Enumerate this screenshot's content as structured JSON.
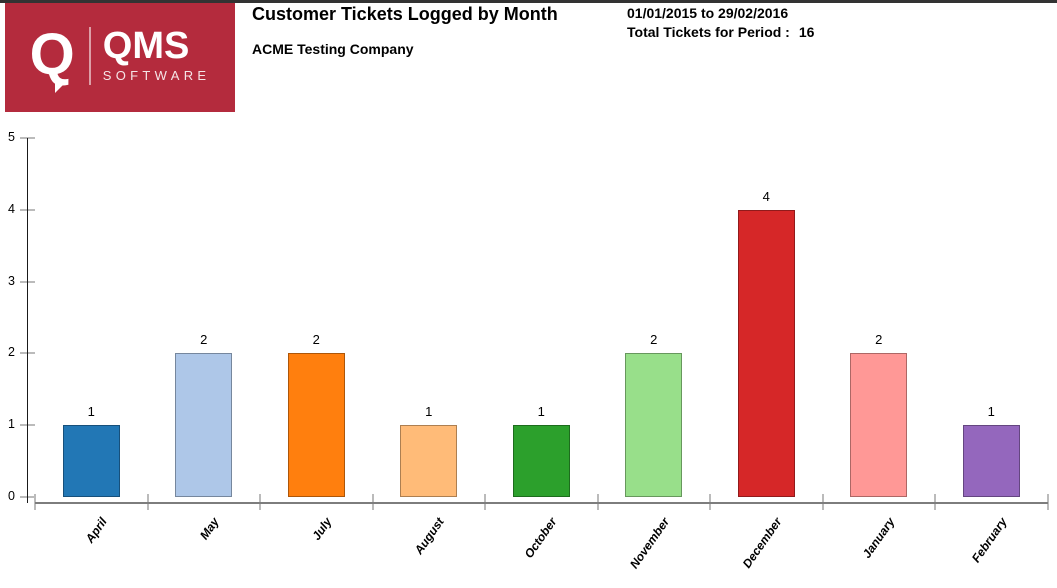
{
  "header": {
    "logo": {
      "q_glyph": "Q",
      "brand": "QMS",
      "sub_brand": "SOFTWARE",
      "bg_color": "#b42b3d"
    },
    "title": "Customer Tickets Logged by Month",
    "subtitle": "ACME Testing Company",
    "period": "01/01/2015 to 29/02/2016",
    "total_label": "Total Tickets for Period :",
    "total_value": "16"
  },
  "chart_data": {
    "type": "bar",
    "title": "Customer Tickets Logged by Month",
    "categories": [
      "April",
      "May",
      "July",
      "August",
      "October",
      "November",
      "December",
      "January",
      "February"
    ],
    "values": [
      1,
      2,
      2,
      1,
      1,
      2,
      4,
      2,
      1
    ],
    "bar_colors": [
      "#2277b5",
      "#aec7e8",
      "#ff7f0e",
      "#ffbb78",
      "#2ca02c",
      "#98df8a",
      "#d62728",
      "#ff9896",
      "#9467bd"
    ],
    "xlabel": "",
    "ylabel": "",
    "ylim": [
      0,
      5
    ],
    "yticks": [
      0,
      1,
      2,
      3,
      4,
      5
    ],
    "grid": false,
    "legend_position": "none",
    "value_labels": true
  }
}
